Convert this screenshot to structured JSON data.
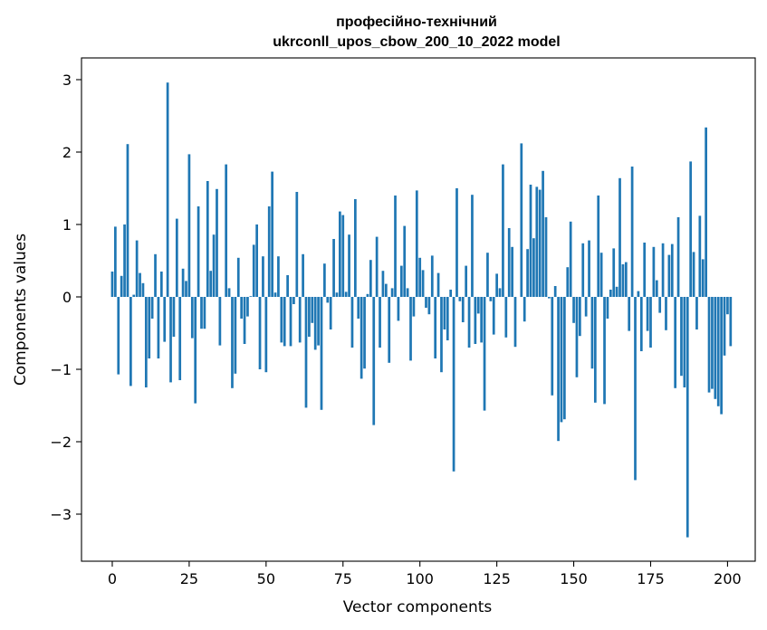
{
  "chart_data": {
    "type": "bar",
    "title_line1": "професійно-технічний",
    "title_line2": "ukrconll_upos_cbow_200_10_2022 model",
    "xlabel": "Vector components",
    "ylabel": "Components values",
    "xlim": [
      -10,
      209
    ],
    "ylim": [
      -3.65,
      3.3
    ],
    "xticks": [
      0,
      25,
      50,
      75,
      100,
      125,
      150,
      175,
      200
    ],
    "yticks": [
      -3,
      -2,
      -1,
      0,
      1,
      2,
      3
    ],
    "ytick_labels": [
      "−3",
      "−2",
      "−1",
      "0",
      "1",
      "2",
      "3"
    ],
    "grid": false,
    "color": "#1f77b4",
    "values": [
      0.35,
      0.97,
      -1.07,
      0.29,
      1.0,
      2.11,
      -1.23,
      0.03,
      0.78,
      0.33,
      0.19,
      -1.25,
      -0.85,
      -0.3,
      0.59,
      -0.85,
      0.35,
      -0.62,
      2.96,
      -1.18,
      -0.55,
      1.08,
      -1.15,
      0.39,
      0.22,
      1.97,
      -0.57,
      -1.47,
      1.25,
      -0.44,
      -0.44,
      1.6,
      0.36,
      0.86,
      1.49,
      -0.67,
      0.0,
      1.83,
      0.12,
      -1.26,
      -1.06,
      0.54,
      -0.3,
      -0.65,
      -0.27,
      0.01,
      0.72,
      1.0,
      -1.0,
      0.56,
      -1.04,
      1.25,
      1.73,
      0.06,
      0.56,
      -0.63,
      -0.68,
      0.3,
      -0.68,
      -0.1,
      1.45,
      -0.63,
      0.59,
      -1.53,
      -0.55,
      -0.36,
      -0.73,
      -0.67,
      -1.56,
      0.46,
      -0.08,
      -0.45,
      0.8,
      0.06,
      1.18,
      1.13,
      0.07,
      0.86,
      -0.7,
      1.35,
      -0.3,
      -1.13,
      -0.99,
      0.04,
      0.51,
      -1.77,
      0.83,
      -0.7,
      0.36,
      0.18,
      -0.91,
      0.12,
      1.4,
      -0.33,
      0.43,
      0.98,
      0.12,
      -0.88,
      -0.27,
      1.47,
      0.54,
      0.37,
      -0.15,
      -0.24,
      0.57,
      -0.85,
      0.33,
      -1.04,
      -0.45,
      -0.6,
      0.1,
      -2.41,
      1.5,
      -0.06,
      -0.35,
      0.43,
      -0.7,
      1.41,
      -0.65,
      -0.23,
      -0.63,
      -1.57,
      0.61,
      -0.06,
      -0.52,
      0.32,
      0.12,
      1.83,
      -0.56,
      0.95,
      0.69,
      -0.69,
      0.0,
      2.12,
      -0.34,
      0.66,
      1.55,
      0.81,
      1.52,
      1.48,
      1.74,
      1.1,
      -0.02,
      -1.36,
      0.15,
      -1.99,
      -1.73,
      -1.69,
      0.41,
      1.04,
      -0.36,
      -1.11,
      -0.54,
      0.74,
      -0.27,
      0.78,
      -0.99,
      -1.46,
      1.4,
      0.61,
      -1.48,
      -0.3,
      0.1,
      0.67,
      0.14,
      1.64,
      0.45,
      0.48,
      -0.47,
      1.8,
      -2.53,
      0.08,
      -0.75,
      0.75,
      -0.47,
      -0.7,
      0.69,
      0.23,
      -0.22,
      0.74,
      -0.46,
      0.58,
      0.73,
      -1.26,
      1.1,
      -1.09,
      -1.25,
      -3.32,
      1.87,
      0.62,
      -0.45,
      1.12,
      0.52,
      2.34,
      -1.32,
      -1.27,
      -1.41,
      -1.51,
      -1.62,
      -0.81,
      -0.24,
      -0.68
    ]
  }
}
